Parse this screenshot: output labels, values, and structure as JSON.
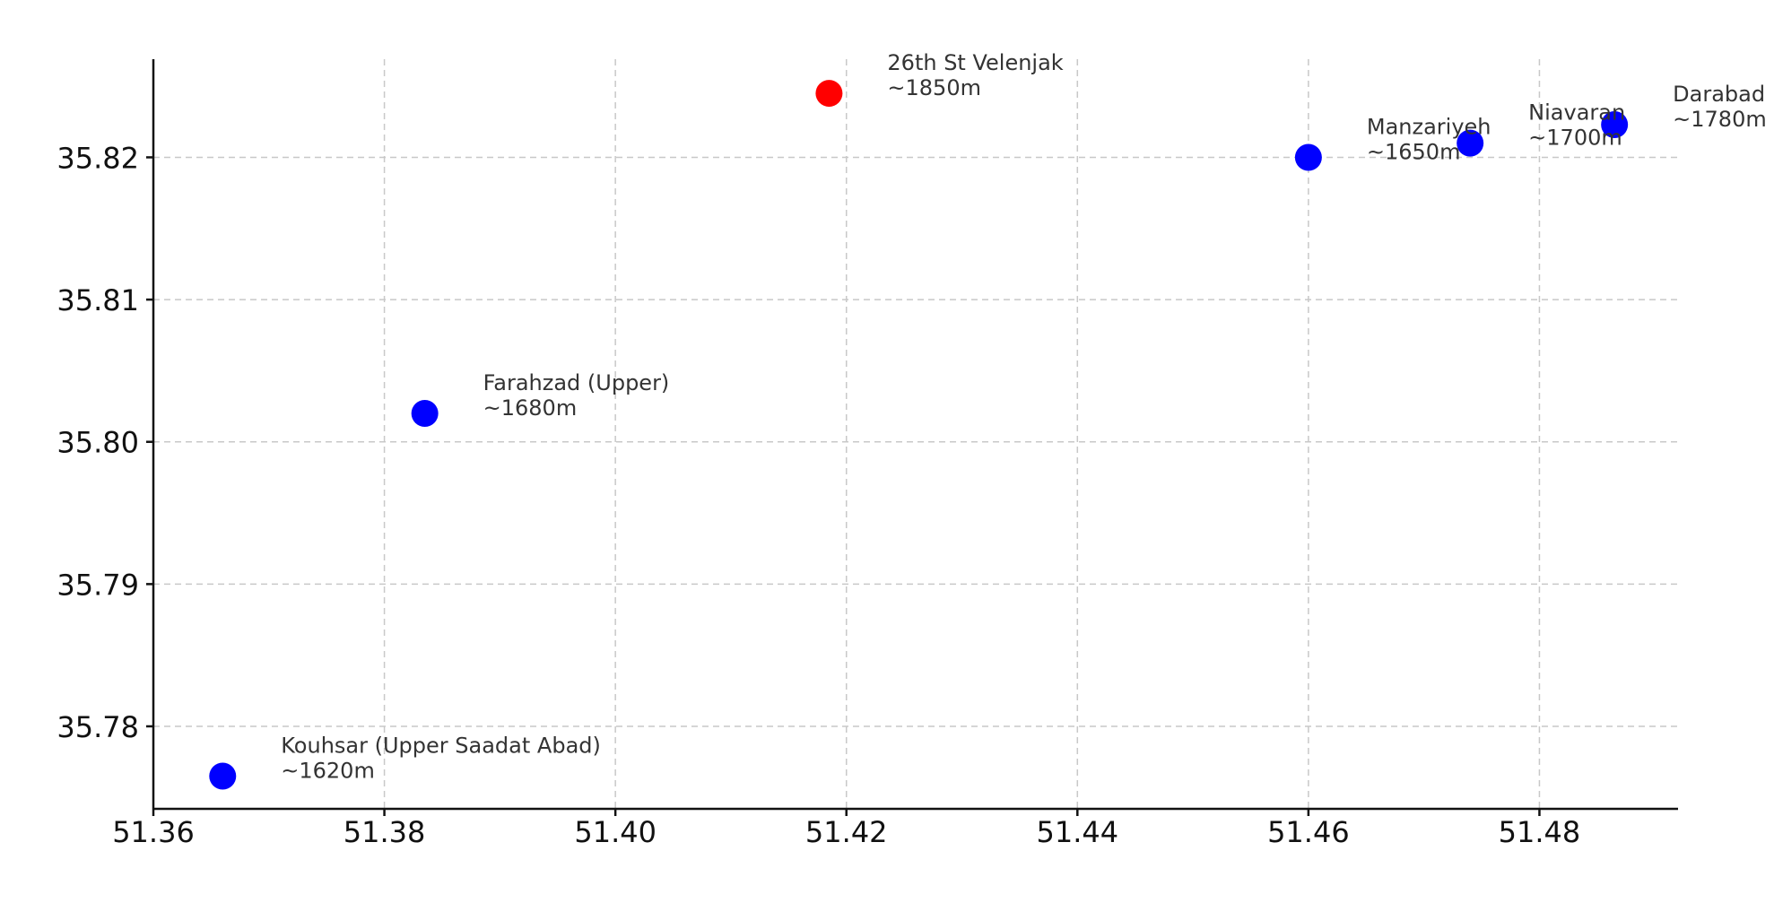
{
  "chart_data": {
    "type": "scatter",
    "title": "",
    "xlabel": "",
    "ylabel": "",
    "xlim": [
      51.36,
      51.492
    ],
    "ylim": [
      35.7742,
      35.8269
    ],
    "x_ticks": [
      "51.36",
      "51.38",
      "51.40",
      "51.42",
      "51.44",
      "51.46",
      "51.48"
    ],
    "x_tick_values": [
      51.36,
      51.38,
      51.4,
      51.42,
      51.44,
      51.46,
      51.48
    ],
    "y_ticks": [
      "35.78",
      "35.79",
      "35.80",
      "35.81",
      "35.82"
    ],
    "y_tick_values": [
      35.78,
      35.79,
      35.8,
      35.81,
      35.82
    ],
    "grid": true,
    "points": [
      {
        "name": "Kouhsar (Upper Saadat Abad)",
        "elevation": "~1620m",
        "x": 51.366,
        "y": 35.7765,
        "color": "#0000ff"
      },
      {
        "name": "Farahzad (Upper)",
        "elevation": "~1680m",
        "x": 51.3835,
        "y": 35.802,
        "color": "#0000ff"
      },
      {
        "name": "26th St Velenjak",
        "elevation": "~1850m",
        "x": 51.4185,
        "y": 35.8245,
        "color": "#ff0000"
      },
      {
        "name": "Manzariyeh",
        "elevation": "~1650m",
        "x": 51.46,
        "y": 35.82,
        "color": "#0000ff"
      },
      {
        "name": "Niavaran",
        "elevation": "~1700m",
        "x": 51.474,
        "y": 35.821,
        "color": "#0000ff"
      },
      {
        "name": "Darabad",
        "elevation": "~1780m",
        "x": 51.4865,
        "y": 35.8223,
        "color": "#0000ff"
      }
    ]
  }
}
